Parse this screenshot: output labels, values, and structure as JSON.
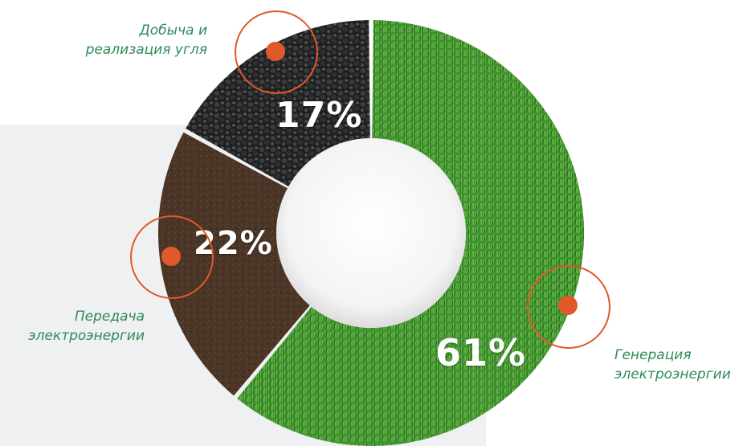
{
  "chart_data": {
    "type": "pie",
    "variant": "donut",
    "categories": [
      "Генерация электроэнергии",
      "Передача электроэнергии",
      "Добыча и реализация угля"
    ],
    "values": [
      61,
      22,
      17
    ],
    "value_labels": [
      "61%",
      "22%",
      "17%"
    ],
    "colors": {
      "generation": "#3f8f2f",
      "transmission": "#4a3526",
      "coal": "#2a2b2c",
      "marker": "#e0592a",
      "label_text": "#2e8a5a"
    }
  },
  "labels": {
    "generation_line1": "Генерация",
    "generation_line2": "электроэнергии",
    "transmission_line1": "Передача",
    "transmission_line2": "электроэнергии",
    "coal_line1": "Добыча и",
    "coal_line2": "реализация угля"
  }
}
